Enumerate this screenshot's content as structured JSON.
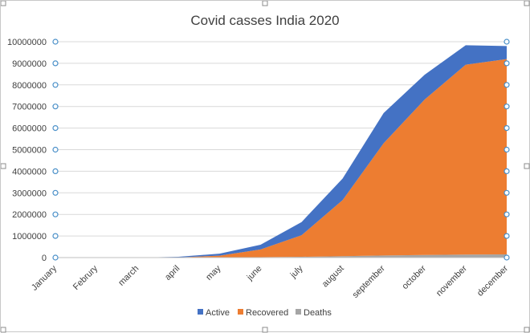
{
  "chart_data": {
    "type": "area",
    "stacked": true,
    "title": "Covid casses India 2020",
    "categories": [
      "January",
      "Februry",
      "march",
      "april",
      "may",
      "june",
      "july",
      "august",
      "september",
      "october",
      "november",
      "december"
    ],
    "series": [
      {
        "name": "Deaths",
        "color": "#a5a5a5",
        "values": [
          0,
          0,
          0,
          1000,
          5000,
          17000,
          36000,
          64000,
          97000,
          122000,
          137000,
          148000
        ]
      },
      {
        "name": "Recovered",
        "color": "#ed7d31",
        "values": [
          0,
          0,
          0,
          7000,
          85000,
          360000,
          1000000,
          2600000,
          5200000,
          7200000,
          8800000,
          9050000
        ]
      },
      {
        "name": "Active",
        "color": "#4472c4",
        "values": [
          0,
          0,
          1500,
          28000,
          93000,
          220000,
          610000,
          1000000,
          1400000,
          1150000,
          900000,
          600000
        ]
      }
    ],
    "legend_order": [
      "Active",
      "Recovered",
      "Deaths"
    ],
    "legend_position": "bottom",
    "xlabel": "",
    "ylabel": "",
    "ylim": [
      0,
      10000000
    ],
    "yticks": [
      "0",
      "1000000",
      "2000000",
      "3000000",
      "4000000",
      "5000000",
      "6000000",
      "7000000",
      "8000000",
      "9000000",
      "10000000"
    ],
    "grid": true
  }
}
